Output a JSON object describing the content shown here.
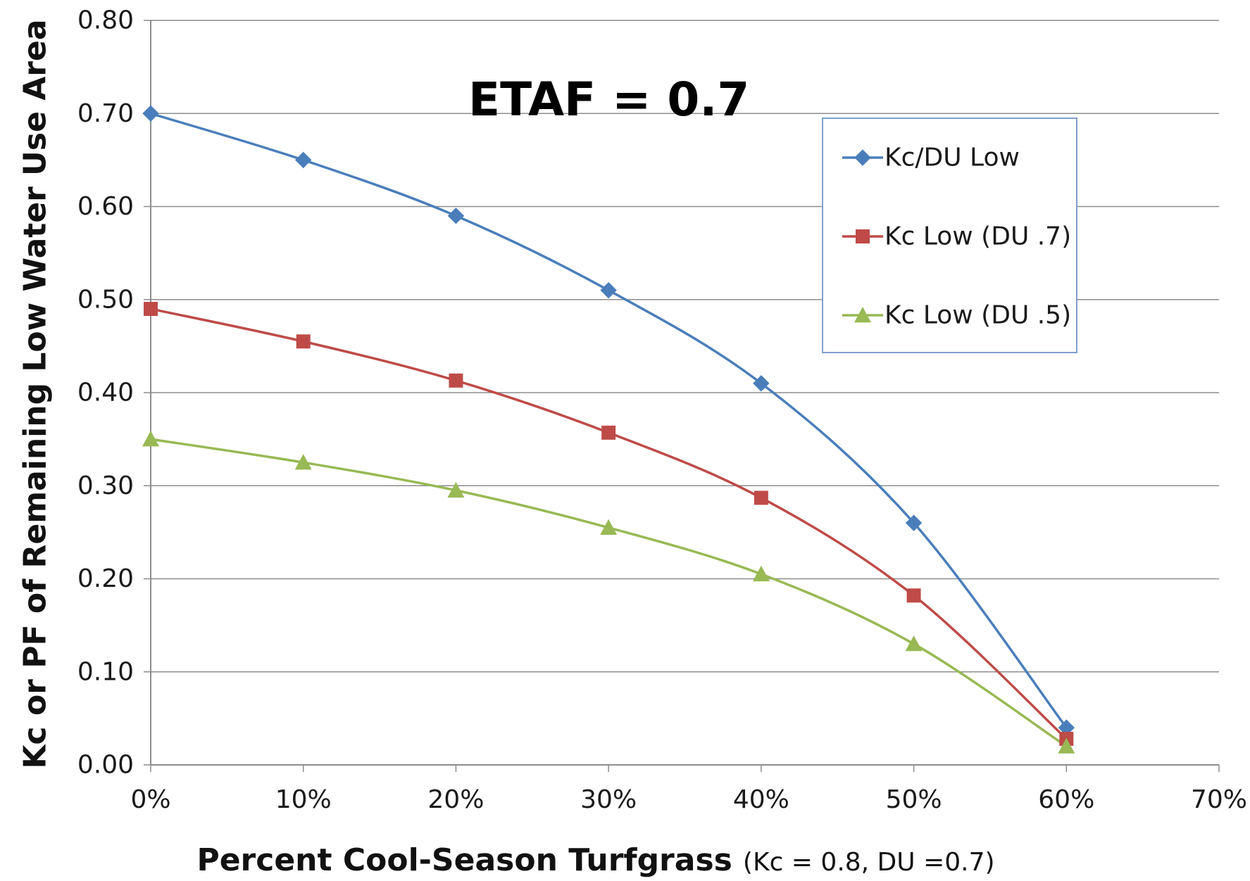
{
  "chart_data": {
    "type": "line",
    "annotation": "ETAF = 0.7",
    "xlabel": "Percent Cool-Season Turfgrass",
    "xlabel_note": "(Kc = 0.8, DU =0.7)",
    "ylabel": "Kc or PF of Remaining Low Water Use Area",
    "x": [
      0,
      10,
      20,
      30,
      40,
      50,
      60
    ],
    "xlim": [
      0,
      70
    ],
    "xticks": [
      0,
      10,
      20,
      30,
      40,
      50,
      60,
      70
    ],
    "xtick_labels": [
      "0%",
      "10%",
      "20%",
      "30%",
      "40%",
      "50%",
      "60%",
      "70%"
    ],
    "ylim": [
      0,
      0.8
    ],
    "yticks": [
      0,
      0.1,
      0.2,
      0.3,
      0.4,
      0.5,
      0.6,
      0.7,
      0.8
    ],
    "ytick_labels": [
      "0.00",
      "0.10",
      "0.20",
      "0.30",
      "0.40",
      "0.50",
      "0.60",
      "0.70",
      "0.80"
    ],
    "grid": "horizontal",
    "legend_position": "upper-right",
    "series": [
      {
        "name": "Kc/DU Low",
        "color": "#4a7ebb",
        "marker": "diamond",
        "values": [
          0.7,
          0.65,
          0.59,
          0.51,
          0.41,
          0.26,
          0.04
        ]
      },
      {
        "name": "Kc Low (DU .7)",
        "color": "#be4b48",
        "marker": "square",
        "values": [
          0.49,
          0.455,
          0.413,
          0.357,
          0.287,
          0.182,
          0.028
        ]
      },
      {
        "name": "Kc Low (DU .5)",
        "color": "#98b954",
        "marker": "triangle",
        "values": [
          0.35,
          0.325,
          0.295,
          0.255,
          0.205,
          0.13,
          0.02
        ]
      }
    ]
  }
}
